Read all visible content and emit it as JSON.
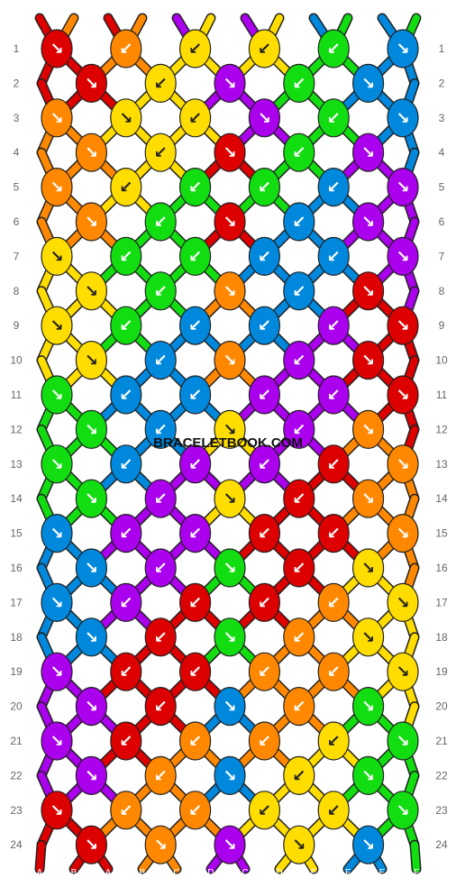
{
  "brand": "BRACELETBOOK.COM",
  "colors": {
    "A": "#dd0000",
    "B": "#ff8800",
    "C": "#aa00ee",
    "D": "#ffdd00",
    "E": "#0088dd",
    "F": "#11dd11"
  },
  "strands": [
    "A",
    "B",
    "A",
    "B",
    "C",
    "D",
    "C",
    "D",
    "E",
    "F",
    "E",
    "F"
  ],
  "row_numbers": [
    1,
    2,
    3,
    4,
    5,
    6,
    7,
    8,
    9,
    10,
    11,
    12,
    13,
    14,
    15,
    16,
    17,
    18,
    19,
    20,
    21,
    22,
    23,
    24
  ],
  "knots": [
    [
      "A:↘",
      "B:↙",
      "D:↙",
      "D:↙",
      "F:↙",
      "E:↘"
    ],
    [
      "A:↘",
      "D:↙",
      "C:↘",
      "F:↙",
      "E:↘"
    ],
    [
      "B:↘",
      "D:↘",
      "D:↙",
      "C:↘",
      "F:↙",
      "E:↘"
    ],
    [
      "B:↘",
      "D:↙",
      "A:↘",
      "F:↙",
      "C:↘"
    ],
    [
      "B:↘",
      "D:↙",
      "F:↙",
      "F:↙",
      "E:↙",
      "C:↘"
    ],
    [
      "B:↘",
      "F:↙",
      "A:↘",
      "E:↙",
      "C:↘"
    ],
    [
      "D:↘",
      "F:↙",
      "F:↙",
      "E:↙",
      "E:↙",
      "C:↘"
    ],
    [
      "D:↘",
      "F:↙",
      "B:↘",
      "E:↙",
      "A:↘"
    ],
    [
      "D:↘",
      "F:↙",
      "E:↙",
      "E:↙",
      "C:↙",
      "A:↘"
    ],
    [
      "D:↘",
      "E:↙",
      "B:↘",
      "C:↙",
      "A:↘"
    ],
    [
      "F:↘",
      "E:↙",
      "E:↙",
      "C:↙",
      "C:↙",
      "A:↘"
    ],
    [
      "F:↘",
      "E:↙",
      "D:↘",
      "C:↙",
      "B:↘"
    ],
    [
      "F:↘",
      "E:↙",
      "C:↙",
      "C:↙",
      "A:↙",
      "B:↘"
    ],
    [
      "F:↘",
      "C:↙",
      "D:↘",
      "A:↙",
      "B:↘"
    ],
    [
      "E:↘",
      "C:↙",
      "C:↙",
      "A:↙",
      "A:↙",
      "B:↘"
    ],
    [
      "E:↘",
      "C:↙",
      "F:↘",
      "A:↙",
      "D:↘"
    ],
    [
      "E:↘",
      "C:↙",
      "A:↙",
      "A:↙",
      "B:↙",
      "D:↘"
    ],
    [
      "E:↘",
      "A:↙",
      "F:↘",
      "B:↙",
      "D:↘"
    ],
    [
      "C:↘",
      "A:↙",
      "A:↙",
      "B:↙",
      "B:↙",
      "D:↘"
    ],
    [
      "C:↘",
      "A:↙",
      "E:↘",
      "B:↙",
      "F:↘"
    ],
    [
      "C:↘",
      "A:↙",
      "B:↙",
      "B:↙",
      "D:↙",
      "F:↘"
    ],
    [
      "C:↘",
      "B:↙",
      "E:↘",
      "D:↙",
      "F:↘"
    ],
    [
      "A:↘",
      "B:↙",
      "B:↙",
      "D:↙",
      "D:↙",
      "F:↘"
    ],
    [
      "A:↘",
      "B:↘",
      "C:↘",
      "D:↘",
      "E:↘"
    ]
  ]
}
